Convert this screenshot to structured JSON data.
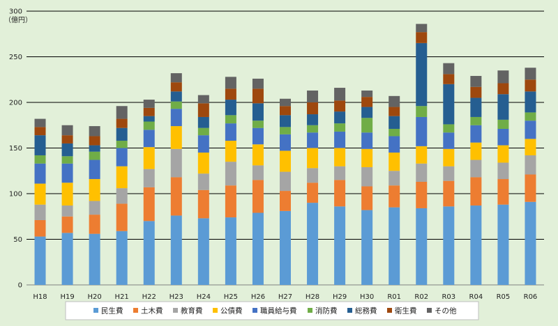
{
  "chart_data": {
    "type": "bar",
    "stacked": true,
    "title": "",
    "unit_label": "（億円）",
    "xlabel": "",
    "ylabel": "",
    "ylim": [
      0,
      300
    ],
    "yticks": [
      0,
      50,
      100,
      150,
      200,
      250,
      300
    ],
    "grid": true,
    "legend_position": "bottom",
    "categories": [
      "H18",
      "H19",
      "H20",
      "H21",
      "H22",
      "H23",
      "H24",
      "H25",
      "H26",
      "H27",
      "H28",
      "H29",
      "H30",
      "R01",
      "R02",
      "R03",
      "R04",
      "R05",
      "R06"
    ],
    "series": [
      {
        "name": "民生費",
        "color": "#5b9bd5",
        "values": [
          53,
          57,
          56,
          59,
          70,
          76,
          73,
          74,
          79,
          81,
          90,
          86,
          82,
          85,
          84,
          86,
          87,
          88,
          91
        ]
      },
      {
        "name": "土木費",
        "color": "#ed7d31",
        "values": [
          18,
          18,
          21,
          30,
          37,
          42,
          31,
          35,
          36,
          22,
          22,
          29,
          26,
          24,
          29,
          28,
          31,
          28,
          30
        ]
      },
      {
        "name": "教育費",
        "color": "#a5a5a5",
        "values": [
          17,
          12,
          15,
          17,
          20,
          31,
          18,
          26,
          16,
          21,
          16,
          15,
          21,
          16,
          20,
          16,
          19,
          18,
          21
        ]
      },
      {
        "name": "公債費",
        "color": "#ffc000",
        "values": [
          23,
          25,
          24,
          24,
          24,
          25,
          23,
          23,
          23,
          23,
          22,
          20,
          20,
          20,
          19,
          19,
          19,
          19,
          18
        ]
      },
      {
        "name": "職員給与費",
        "color": "#4472c4",
        "values": [
          22,
          21,
          21,
          20,
          19,
          19,
          19,
          19,
          18,
          18,
          17,
          18,
          18,
          18,
          32,
          18,
          19,
          18,
          20
        ]
      },
      {
        "name": "消防費",
        "color": "#70ad47",
        "values": [
          9,
          8,
          9,
          8,
          9,
          8,
          8,
          9,
          8,
          8,
          8,
          9,
          16,
          8,
          12,
          9,
          9,
          10,
          9
        ]
      },
      {
        "name": "総務費",
        "color": "#255e91",
        "values": [
          22,
          14,
          7,
          14,
          6,
          11,
          12,
          17,
          19,
          13,
          12,
          13,
          12,
          14,
          69,
          44,
          21,
          28,
          23
        ]
      },
      {
        "name": "衛生費",
        "color": "#9e480e",
        "values": [
          9,
          9,
          10,
          10,
          9,
          10,
          15,
          12,
          16,
          10,
          13,
          12,
          11,
          10,
          12,
          11,
          12,
          12,
          13
        ]
      },
      {
        "name": "その他",
        "color": "#636363",
        "values": [
          9,
          11,
          11,
          14,
          9,
          10,
          9,
          13,
          11,
          8,
          13,
          14,
          7,
          12,
          9,
          12,
          12,
          14,
          13
        ]
      }
    ]
  }
}
